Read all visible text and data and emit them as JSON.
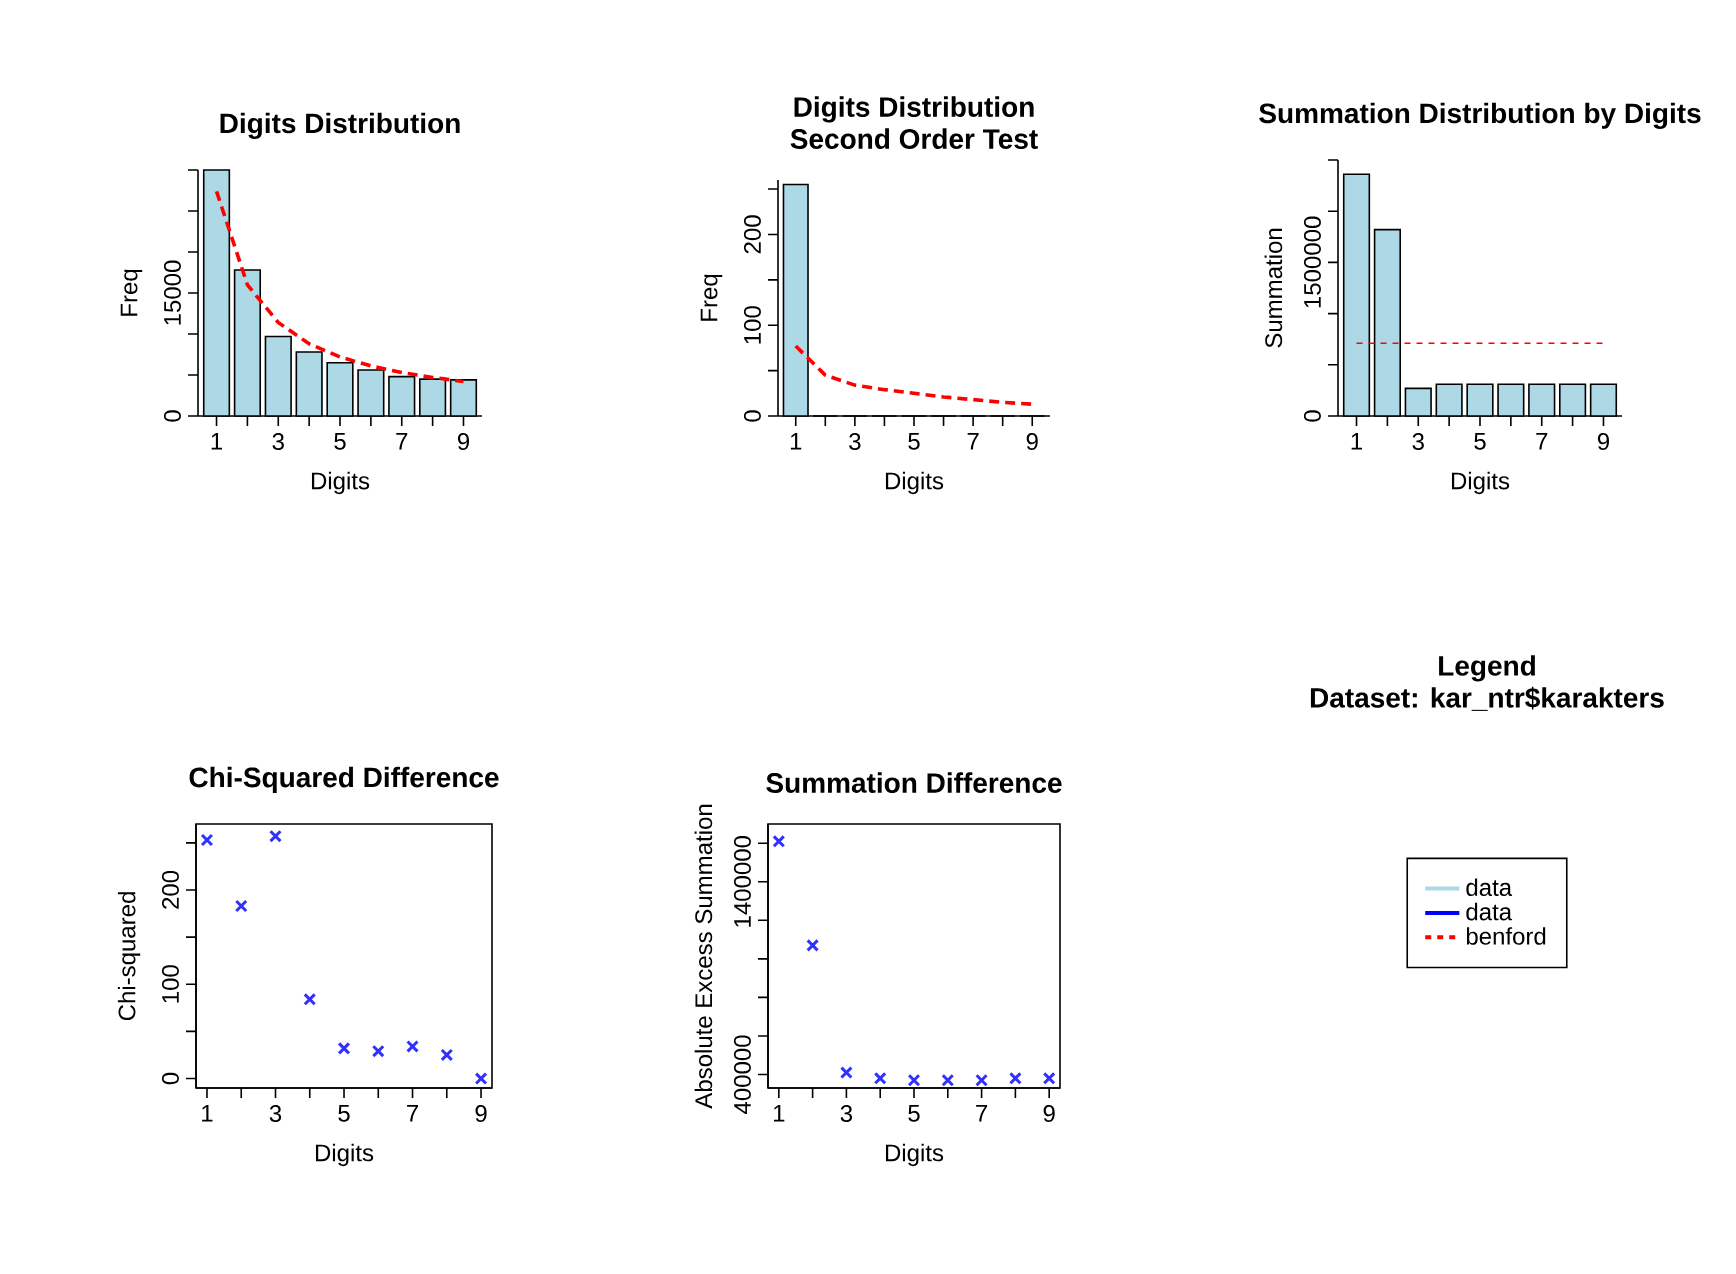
{
  "chart_data": [
    {
      "type": "bar",
      "title": "Digits Distribution",
      "xlabel": "Digits",
      "ylabel": "Freq",
      "categories": [
        "1",
        null,
        "3",
        null,
        "5",
        null,
        "7",
        null,
        "9"
      ],
      "series": [
        {
          "type": "bar",
          "color": "#add8e6",
          "values": [
            30000,
            17800,
            9700,
            7800,
            6500,
            5600,
            4800,
            4500,
            4400
          ]
        },
        {
          "type": "line",
          "color": "#ff0000",
          "line_style": "dashed",
          "values": [
            27400,
            16000,
            11400,
            8800,
            7200,
            6100,
            5300,
            4700,
            4200
          ]
        }
      ],
      "ylim": [
        0,
        30000
      ],
      "yticks": [
        0,
        {
          "value": 5000,
          "label": null
        },
        {
          "value": 10000,
          "label": null
        },
        15000,
        {
          "value": 20000,
          "label": null
        },
        {
          "value": 25000,
          "label": null
        },
        {
          "value": 30000,
          "label": null
        }
      ]
    },
    {
      "type": "bar",
      "title": "Digits Distribution",
      "subtitle": "Second Order Test",
      "xlabel": "Digits",
      "ylabel": "Freq",
      "categories": [
        "1",
        null,
        "3",
        null,
        "5",
        null,
        "7",
        null,
        "9"
      ],
      "series": [
        {
          "type": "bar",
          "color": "#add8e6",
          "values": [
            255,
            0,
            0,
            0,
            0,
            0,
            0,
            0,
            0
          ]
        },
        {
          "type": "line",
          "color": "#ff0000",
          "line_style": "dashed",
          "values": [
            77,
            45,
            34,
            29,
            25,
            21,
            18,
            15,
            13
          ]
        }
      ],
      "ylim": [
        0,
        260
      ],
      "yticks": [
        0,
        {
          "value": 50,
          "label": null
        },
        100,
        {
          "value": 150,
          "label": null
        },
        200,
        {
          "value": 250,
          "label": null
        }
      ]
    },
    {
      "type": "bar",
      "title": "Summation Distribution by Digits",
      "xlabel": "Digits",
      "ylabel": "Summation",
      "categories": [
        "1",
        null,
        "3",
        null,
        "5",
        null,
        "7",
        null,
        "9"
      ],
      "series": [
        {
          "type": "bar",
          "color": "#add8e6",
          "values": [
            2360000,
            1820000,
            270000,
            310000,
            310000,
            310000,
            310000,
            310000,
            310000
          ]
        }
      ],
      "ref_lines": [
        {
          "axis": "y",
          "value": 710000,
          "color": "#ff0000",
          "line_style": "dashed"
        }
      ],
      "ylim": [
        0,
        2500000
      ],
      "yticks": [
        0,
        {
          "value": 500000,
          "label": null
        },
        {
          "value": 1000000,
          "label": null
        },
        1500000,
        {
          "value": 2000000,
          "label": null
        },
        {
          "value": 2500000,
          "label": null
        }
      ]
    },
    {
      "type": "scatter",
      "title": "Chi-Squared Difference",
      "xlabel": "Digits",
      "ylabel": "Chi-squared",
      "marker": "cross",
      "x": [
        1,
        2,
        3,
        4,
        5,
        6,
        7,
        8,
        9
      ],
      "series": [
        {
          "color": "#3030ff",
          "values": [
            253,
            183,
            257,
            84,
            32,
            29,
            34,
            25,
            0
          ]
        }
      ],
      "xlim": [
        0.68,
        9.32
      ],
      "xticks": [
        1,
        {
          "value": 2,
          "label": null
        },
        3,
        {
          "value": 4,
          "label": null
        },
        5,
        {
          "value": 6,
          "label": null
        },
        7,
        {
          "value": 8,
          "label": null
        },
        9
      ],
      "ylim": [
        -10,
        270
      ],
      "yticks": [
        0,
        {
          "value": 50,
          "label": null
        },
        100,
        {
          "value": 150,
          "label": null
        },
        200,
        {
          "value": 250,
          "label": null
        }
      ]
    },
    {
      "type": "scatter",
      "title": "Summation Difference",
      "xlabel": "Digits",
      "ylabel": "Absolute Excess Summation",
      "marker": "cross",
      "x": [
        1,
        2,
        3,
        4,
        5,
        6,
        7,
        8,
        9
      ],
      "series": [
        {
          "color": "#3030ff",
          "values": [
            1610000,
            1070000,
            410000,
            380000,
            370000,
            370000,
            370000,
            380000,
            380000
          ]
        }
      ],
      "xlim": [
        0.68,
        9.32
      ],
      "xticks": [
        1,
        {
          "value": 2,
          "label": null
        },
        3,
        {
          "value": 4,
          "label": null
        },
        5,
        {
          "value": 6,
          "label": null
        },
        7,
        {
          "value": 8,
          "label": null
        },
        9
      ],
      "ylim": [
        330000,
        1700000
      ],
      "yticks": [
        400000,
        {
          "value": 600000,
          "label": null
        },
        {
          "value": 800000,
          "label": null
        },
        {
          "value": 1000000,
          "label": null
        },
        {
          "value": 1200000,
          "label": null
        },
        1400000,
        {
          "value": 1600000,
          "label": null
        }
      ]
    },
    {
      "type": "other",
      "title": "Legend",
      "subtitle": "Dataset: kar_ntr$karakters",
      "series": [
        {
          "name": "data",
          "color": "#add8e6"
        },
        {
          "name": "data",
          "color": "#0000ff"
        },
        {
          "name": "benford",
          "color": "#ff0000",
          "line_style": "dashed"
        }
      ]
    }
  ]
}
